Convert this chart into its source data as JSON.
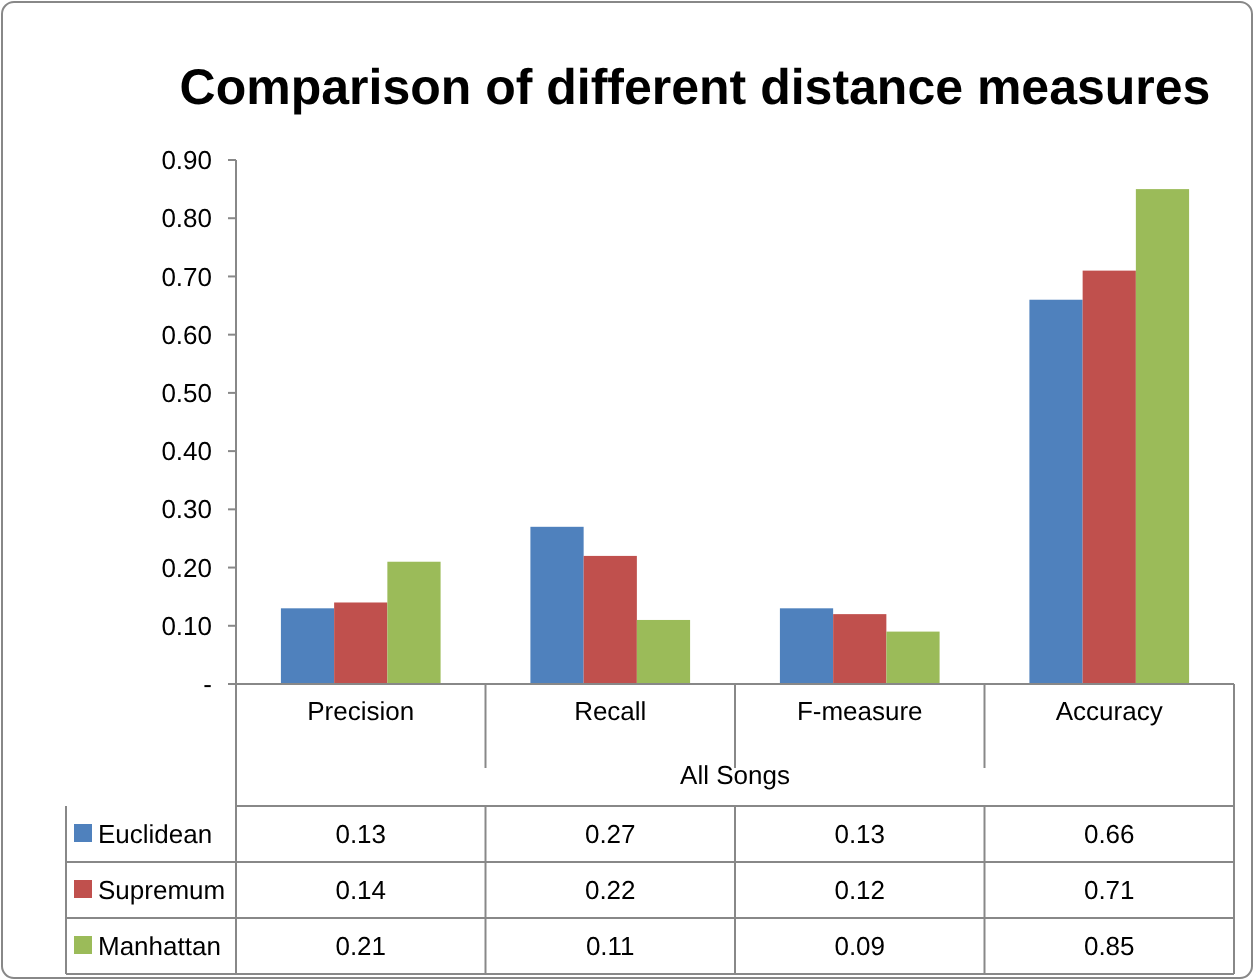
{
  "chart_data": {
    "type": "bar",
    "title": "Comparison of different distance measures",
    "xlabel": "All Songs",
    "categories": [
      "Precision",
      "Recall",
      "F-measure",
      "Accuracy"
    ],
    "series": [
      {
        "name": "Euclidean",
        "color": "#4f81bd",
        "values": [
          0.13,
          0.27,
          0.13,
          0.66
        ]
      },
      {
        "name": "Supremum",
        "color": "#c0504d",
        "values": [
          0.14,
          0.22,
          0.12,
          0.71
        ]
      },
      {
        "name": "Manhattan",
        "color": "#9bbb59",
        "values": [
          0.21,
          0.11,
          0.09,
          0.85
        ]
      }
    ],
    "ylim": [
      0,
      0.9
    ],
    "yticks": [
      {
        "value": 0,
        "label": "-"
      },
      {
        "value": 0.1,
        "label": "0.10"
      },
      {
        "value": 0.2,
        "label": "0.20"
      },
      {
        "value": 0.3,
        "label": "0.30"
      },
      {
        "value": 0.4,
        "label": "0.40"
      },
      {
        "value": 0.5,
        "label": "0.50"
      },
      {
        "value": 0.6,
        "label": "0.60"
      },
      {
        "value": 0.7,
        "label": "0.70"
      },
      {
        "value": 0.8,
        "label": "0.80"
      },
      {
        "value": 0.9,
        "label": "0.90"
      }
    ],
    "data_labels": true,
    "legend": "bottom"
  }
}
